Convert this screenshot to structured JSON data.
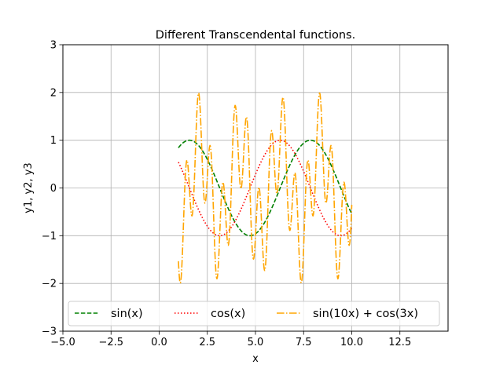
{
  "chart_data": {
    "type": "line",
    "title": "Different Transcendental functions.",
    "xlabel": "x",
    "ylabel": "y1, y2, y3",
    "xlim": [
      -5.0,
      15.0
    ],
    "ylim": [
      -3,
      3
    ],
    "xticks": [
      "−5.0",
      "−2.5",
      "0.0",
      "2.5",
      "5.0",
      "7.5",
      "10.0",
      "12.5"
    ],
    "xtick_values": [
      -5.0,
      -2.5,
      0.0,
      2.5,
      5.0,
      7.5,
      10.0,
      12.5
    ],
    "yticks": [
      "−3",
      "−2",
      "−1",
      "0",
      "1",
      "2",
      "3"
    ],
    "ytick_values": [
      -3,
      -2,
      -1,
      0,
      1,
      2,
      3
    ],
    "grid": true,
    "legend_placement": "lower-center",
    "x_domain": [
      1,
      10
    ],
    "series": [
      {
        "name": "sin(x)",
        "expression": "sin(x)",
        "color": "#008000",
        "style": "dashed"
      },
      {
        "name": "cos(x)",
        "expression": "cos(x)",
        "color": "#ff0000",
        "style": "dotted"
      },
      {
        "name": "sin(10x) + cos(3x)",
        "expression": "sin(10x) + cos(3x)",
        "color": "#ffa500",
        "style": "dashdot"
      }
    ]
  }
}
